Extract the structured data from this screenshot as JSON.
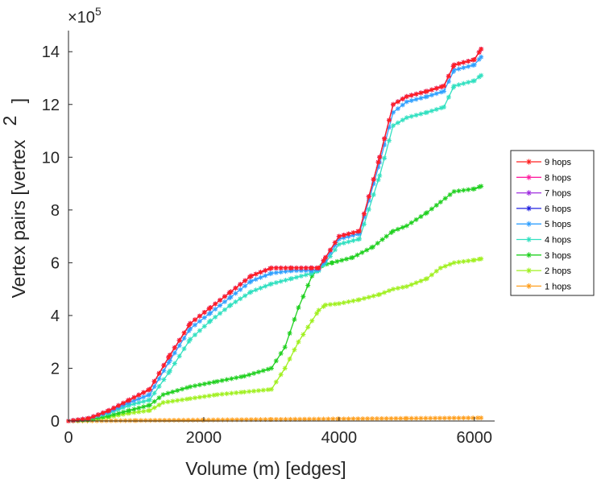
{
  "chart_data": {
    "type": "line",
    "title": "",
    "xlabel": "Volume (m) [edges]",
    "ylabel": "Vertex pairs [vertex",
    "ylabel_exponent": "2",
    "ylabel_close": "]",
    "y_multiplier_base": "×10",
    "y_multiplier_exponent": "5",
    "xlim": [
      0,
      6300
    ],
    "ylim": [
      0,
      14.8
    ],
    "xticks": [
      0,
      2000,
      4000,
      6000
    ],
    "yticks": [
      0,
      2,
      4,
      6,
      8,
      10,
      12,
      14
    ],
    "legend_position": "right",
    "series": [
      {
        "name": "9 hops",
        "color": "#ff2020",
        "x": [
          0,
          300,
          600,
          900,
          1200,
          1500,
          1800,
          2100,
          2400,
          2700,
          3000,
          3300,
          3600,
          3700,
          3800,
          4000,
          4300,
          4600,
          4800,
          5000,
          5300,
          5550,
          5700,
          6000,
          6100
        ],
        "values": [
          0,
          0.1,
          0.4,
          0.8,
          1.2,
          2.5,
          3.7,
          4.3,
          4.9,
          5.5,
          5.8,
          5.8,
          5.8,
          5.8,
          6.2,
          7.0,
          7.2,
          10.0,
          12.0,
          12.3,
          12.5,
          12.7,
          13.5,
          13.7,
          14.1
        ]
      },
      {
        "name": "8 hops",
        "color": "#ff20a0",
        "x": [
          0,
          300,
          600,
          900,
          1200,
          1500,
          1800,
          2100,
          2400,
          2700,
          3000,
          3300,
          3600,
          3700,
          3800,
          4000,
          4300,
          4600,
          4800,
          5000,
          5300,
          5550,
          5700,
          6000,
          6100
        ],
        "values": [
          0,
          0.1,
          0.4,
          0.8,
          1.2,
          2.5,
          3.7,
          4.3,
          4.9,
          5.5,
          5.8,
          5.8,
          5.8,
          5.8,
          6.2,
          7.0,
          7.2,
          10.0,
          12.0,
          12.3,
          12.5,
          12.7,
          13.5,
          13.7,
          14.1
        ]
      },
      {
        "name": "7 hops",
        "color": "#a030e0",
        "x": [
          0,
          300,
          600,
          900,
          1200,
          1500,
          1800,
          2100,
          2400,
          2700,
          3000,
          3300,
          3600,
          3700,
          3800,
          4000,
          4300,
          4600,
          4800,
          5000,
          5300,
          5550,
          5700,
          6000,
          6100
        ],
        "values": [
          0,
          0.1,
          0.4,
          0.8,
          1.2,
          2.5,
          3.7,
          4.3,
          4.9,
          5.5,
          5.8,
          5.8,
          5.8,
          5.8,
          6.2,
          7.0,
          7.2,
          10.0,
          12.0,
          12.3,
          12.5,
          12.7,
          13.5,
          13.7,
          14.1
        ]
      },
      {
        "name": "6 hops",
        "color": "#2020e0",
        "x": [
          0,
          300,
          600,
          900,
          1200,
          1500,
          1800,
          2100,
          2400,
          2700,
          3000,
          3300,
          3600,
          3700,
          3800,
          4000,
          4300,
          4600,
          4800,
          5000,
          5300,
          5550,
          5700,
          6000,
          6100
        ],
        "values": [
          0,
          0.1,
          0.4,
          0.8,
          1.2,
          2.5,
          3.7,
          4.3,
          4.9,
          5.5,
          5.8,
          5.8,
          5.8,
          5.8,
          6.2,
          7.0,
          7.2,
          10.0,
          12.0,
          12.3,
          12.5,
          12.7,
          13.5,
          13.7,
          14.1
        ]
      },
      {
        "name": "5 hops",
        "color": "#30a0ff",
        "x": [
          0,
          300,
          600,
          900,
          1200,
          1500,
          1800,
          2100,
          2400,
          2700,
          3000,
          3300,
          3600,
          3700,
          3800,
          4000,
          4300,
          4600,
          4800,
          5000,
          5300,
          5550,
          5700,
          6000,
          6100
        ],
        "values": [
          0,
          0.1,
          0.35,
          0.7,
          1.0,
          2.3,
          3.5,
          4.1,
          4.7,
          5.3,
          5.6,
          5.7,
          5.7,
          5.75,
          6.1,
          6.9,
          7.1,
          9.8,
          11.7,
          12.1,
          12.3,
          12.5,
          13.3,
          13.5,
          13.8
        ]
      },
      {
        "name": "4 hops",
        "color": "#30e0c0",
        "x": [
          0,
          300,
          600,
          900,
          1200,
          1500,
          1800,
          2100,
          2400,
          2700,
          3000,
          3300,
          3600,
          3700,
          3800,
          4000,
          4300,
          4600,
          4800,
          5000,
          5300,
          5550,
          5700,
          6000,
          6100
        ],
        "values": [
          0,
          0.1,
          0.3,
          0.6,
          0.8,
          1.9,
          3.1,
          3.8,
          4.4,
          4.9,
          5.2,
          5.4,
          5.6,
          5.7,
          6.0,
          6.7,
          6.9,
          9.3,
          11.2,
          11.5,
          11.7,
          11.9,
          12.7,
          12.9,
          13.1
        ]
      },
      {
        "name": "3 hops",
        "color": "#20d020",
        "x": [
          0,
          300,
          600,
          900,
          1200,
          1400,
          1800,
          2200,
          2600,
          3000,
          3200,
          3400,
          3600,
          3750,
          3900,
          4200,
          4500,
          4700,
          4800,
          5000,
          5300,
          5500,
          5700,
          6000,
          6100
        ],
        "values": [
          0,
          0.05,
          0.2,
          0.4,
          0.6,
          1.0,
          1.3,
          1.5,
          1.7,
          2.0,
          2.8,
          4.3,
          5.5,
          5.9,
          6.0,
          6.2,
          6.6,
          7.0,
          7.2,
          7.4,
          7.9,
          8.3,
          8.7,
          8.8,
          8.9
        ]
      },
      {
        "name": "2 hops",
        "color": "#a0f020",
        "x": [
          0,
          300,
          600,
          900,
          1200,
          1400,
          1800,
          2200,
          2600,
          3000,
          3200,
          3400,
          3600,
          3700,
          3800,
          4000,
          4300,
          4600,
          4800,
          5000,
          5300,
          5500,
          5700,
          6000,
          6100
        ],
        "values": [
          0,
          0.05,
          0.15,
          0.3,
          0.4,
          0.7,
          0.85,
          1.0,
          1.1,
          1.2,
          2.0,
          3.0,
          3.8,
          4.2,
          4.4,
          4.45,
          4.6,
          4.8,
          5.0,
          5.1,
          5.4,
          5.8,
          6.0,
          6.1,
          6.15
        ]
      },
      {
        "name": "1 hops",
        "color": "#ffa020",
        "x": [
          0,
          1000,
          2000,
          3000,
          4000,
          5000,
          6100
        ],
        "values": [
          0,
          0.02,
          0.04,
          0.06,
          0.08,
          0.1,
          0.12
        ]
      }
    ]
  }
}
